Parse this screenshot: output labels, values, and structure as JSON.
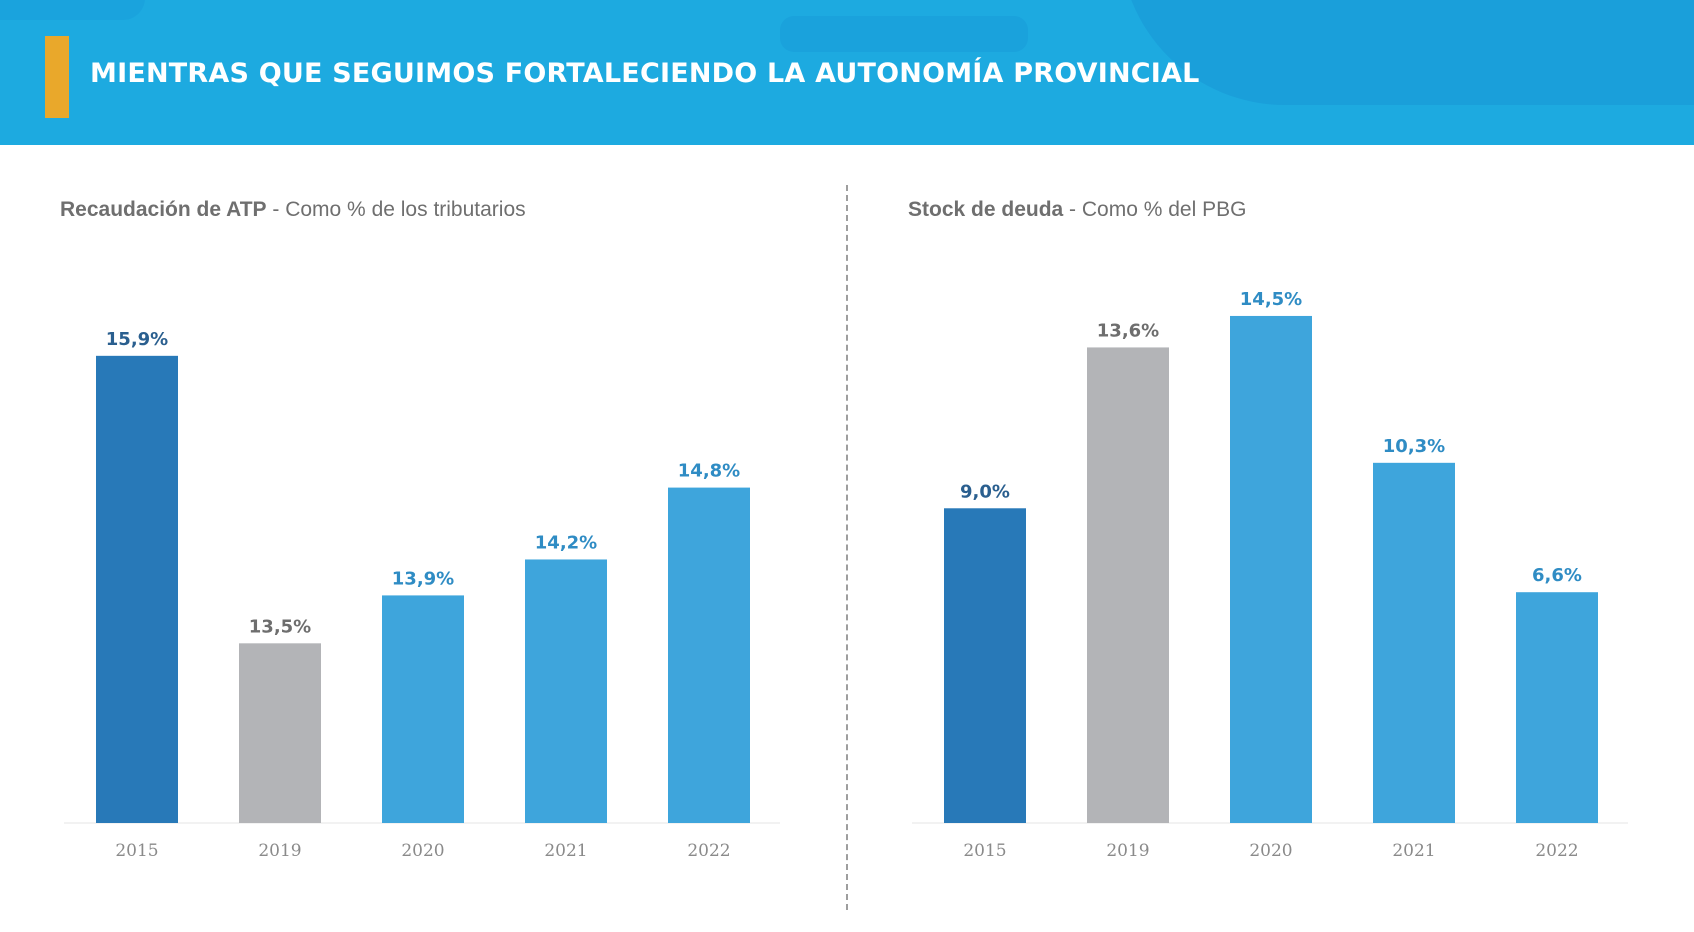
{
  "header": {
    "title": "MIENTRAS QUE SEGUIMOS FORTALECIENDO LA AUTONOMÍA PROVINCIAL"
  },
  "colors": {
    "header_bg": "#1daae0",
    "accent": "#e9a82b",
    "bar_2015": "#2879b8",
    "bar_2019": "#b3b4b7",
    "bar_other": "#3ea5dc",
    "label_2015": "#2a5f8f",
    "label_2019": "#6e6e6e",
    "label_other": "#2f8cc4"
  },
  "chart_data": [
    {
      "type": "bar",
      "title_bold": "Recaudación de ATP",
      "title_rest": " - Como % de los tributarios",
      "categories": [
        "2015",
        "2019",
        "2020",
        "2021",
        "2022"
      ],
      "values": [
        15.9,
        13.5,
        13.9,
        14.2,
        14.8
      ],
      "data_labels": [
        "15,9%",
        "13,5%",
        "13,9%",
        "14,2%",
        "14,8%"
      ],
      "ylim": [
        12.0,
        16.7
      ]
    },
    {
      "type": "bar",
      "title_bold": "Stock de deuda",
      "title_rest": " - Como % del PBG",
      "categories": [
        "2015",
        "2019",
        "2020",
        "2021",
        "2022"
      ],
      "values": [
        9.0,
        13.6,
        14.5,
        10.3,
        6.6
      ],
      "data_labels": [
        "9,0%",
        "13,6%",
        "14,5%",
        "10,3%",
        "6,6%"
      ],
      "ylim": [
        0,
        16.1
      ]
    }
  ]
}
